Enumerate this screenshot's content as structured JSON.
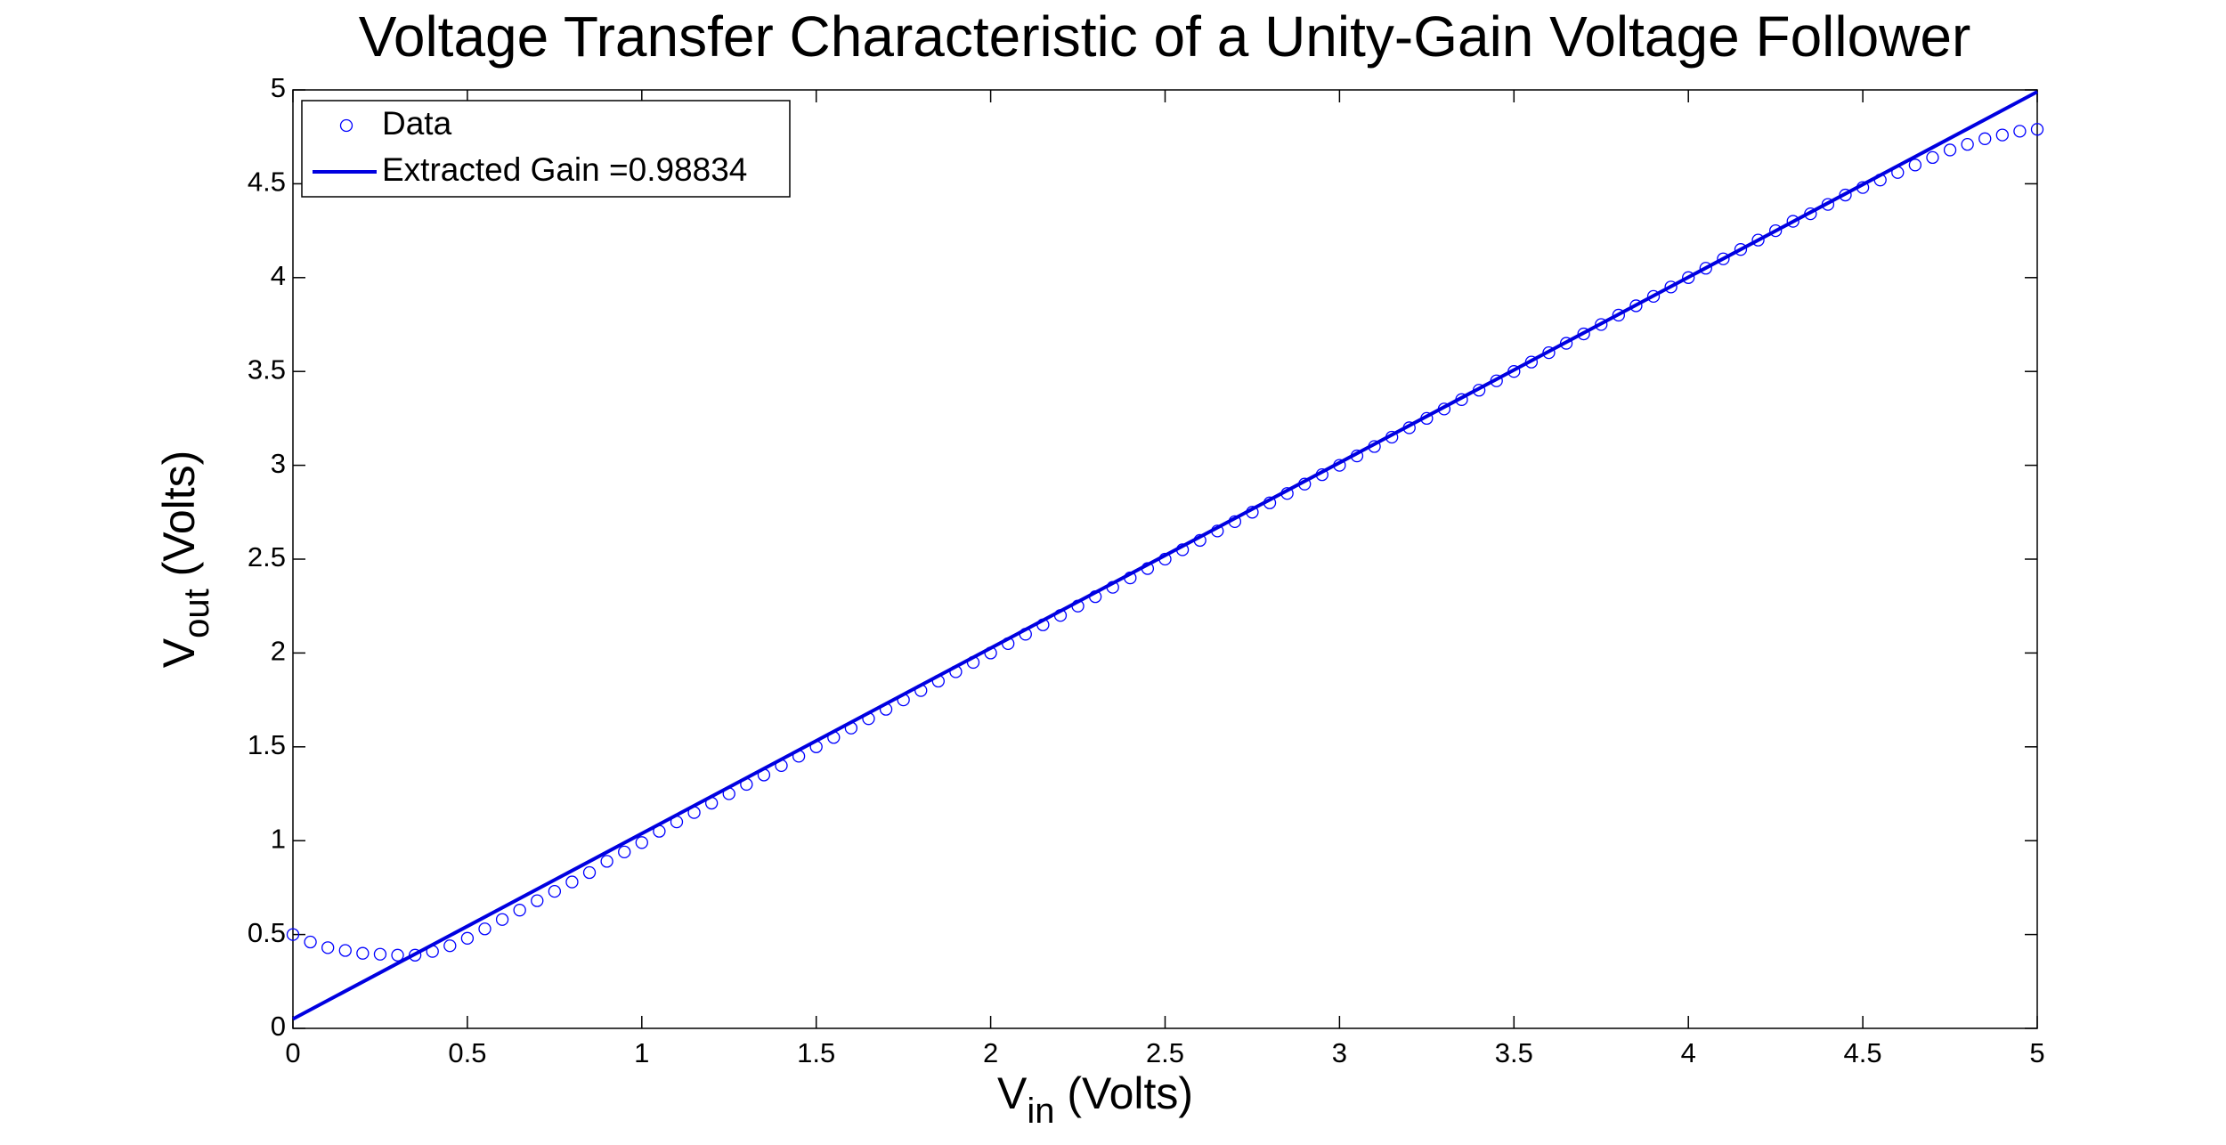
{
  "chart_data": {
    "type": "scatter",
    "title": "Voltage Transfer Characteristic of a Unity-Gain Voltage Follower",
    "xlabel": {
      "main": "V",
      "sub": "in",
      "rest": " (Volts)"
    },
    "ylabel": {
      "main": "V",
      "sub": "out",
      "rest": " (Volts)"
    },
    "xlim": [
      0,
      5
    ],
    "ylim": [
      0,
      5
    ],
    "xticks": [
      0,
      0.5,
      1,
      1.5,
      2,
      2.5,
      3,
      3.5,
      4,
      4.5,
      5
    ],
    "yticks": [
      0,
      0.5,
      1,
      1.5,
      2,
      2.5,
      3,
      3.5,
      4,
      4.5,
      5
    ],
    "grid": false,
    "legend": "upper left",
    "series": [
      {
        "name": "Data",
        "type": "scatter",
        "color": "#0000ff",
        "x": [
          0,
          0.05,
          0.1,
          0.15,
          0.2,
          0.25,
          0.3,
          0.35,
          0.4,
          0.45,
          0.5,
          0.55,
          0.6,
          0.65,
          0.7,
          0.75,
          0.8,
          0.85,
          0.9,
          0.95,
          1,
          1.05,
          1.1,
          1.15,
          1.2,
          1.25,
          1.3,
          1.35,
          1.4,
          1.45,
          1.5,
          1.55,
          1.6,
          1.65,
          1.7,
          1.75,
          1.8,
          1.85,
          1.9,
          1.95,
          2,
          2.05,
          2.1,
          2.15,
          2.2,
          2.25,
          2.3,
          2.35,
          2.4,
          2.45,
          2.5,
          2.55,
          2.6,
          2.65,
          2.7,
          2.75,
          2.8,
          2.85,
          2.9,
          2.95,
          3,
          3.05,
          3.1,
          3.15,
          3.2,
          3.25,
          3.3,
          3.35,
          3.4,
          3.45,
          3.5,
          3.55,
          3.6,
          3.65,
          3.7,
          3.75,
          3.8,
          3.85,
          3.9,
          3.95,
          4,
          4.05,
          4.1,
          4.15,
          4.2,
          4.25,
          4.3,
          4.35,
          4.4,
          4.45,
          4.5,
          4.55,
          4.6,
          4.65,
          4.7,
          4.75,
          4.8,
          4.85,
          4.9,
          4.95,
          5
        ],
        "values": [
          0.5,
          0.46,
          0.43,
          0.415,
          0.4,
          0.395,
          0.39,
          0.39,
          0.41,
          0.44,
          0.48,
          0.53,
          0.58,
          0.63,
          0.68,
          0.73,
          0.78,
          0.83,
          0.89,
          0.94,
          0.99,
          1.05,
          1.1,
          1.15,
          1.2,
          1.25,
          1.3,
          1.35,
          1.4,
          1.45,
          1.5,
          1.55,
          1.6,
          1.65,
          1.7,
          1.75,
          1.8,
          1.85,
          1.9,
          1.95,
          2,
          2.05,
          2.1,
          2.15,
          2.2,
          2.25,
          2.3,
          2.35,
          2.4,
          2.45,
          2.5,
          2.55,
          2.6,
          2.65,
          2.7,
          2.75,
          2.8,
          2.85,
          2.9,
          2.95,
          3,
          3.05,
          3.1,
          3.15,
          3.2,
          3.25,
          3.3,
          3.35,
          3.4,
          3.45,
          3.5,
          3.55,
          3.6,
          3.65,
          3.7,
          3.75,
          3.8,
          3.85,
          3.9,
          3.95,
          4,
          4.05,
          4.1,
          4.15,
          4.2,
          4.25,
          4.3,
          4.34,
          4.39,
          4.44,
          4.48,
          4.52,
          4.56,
          4.6,
          4.64,
          4.68,
          4.71,
          4.74,
          4.76,
          4.78,
          4.79
        ]
      },
      {
        "name": "Extracted Gain =0.98834",
        "type": "line",
        "color": "#0000e0",
        "x": [
          0,
          5
        ],
        "values": [
          0.05,
          4.99
        ]
      }
    ]
  }
}
